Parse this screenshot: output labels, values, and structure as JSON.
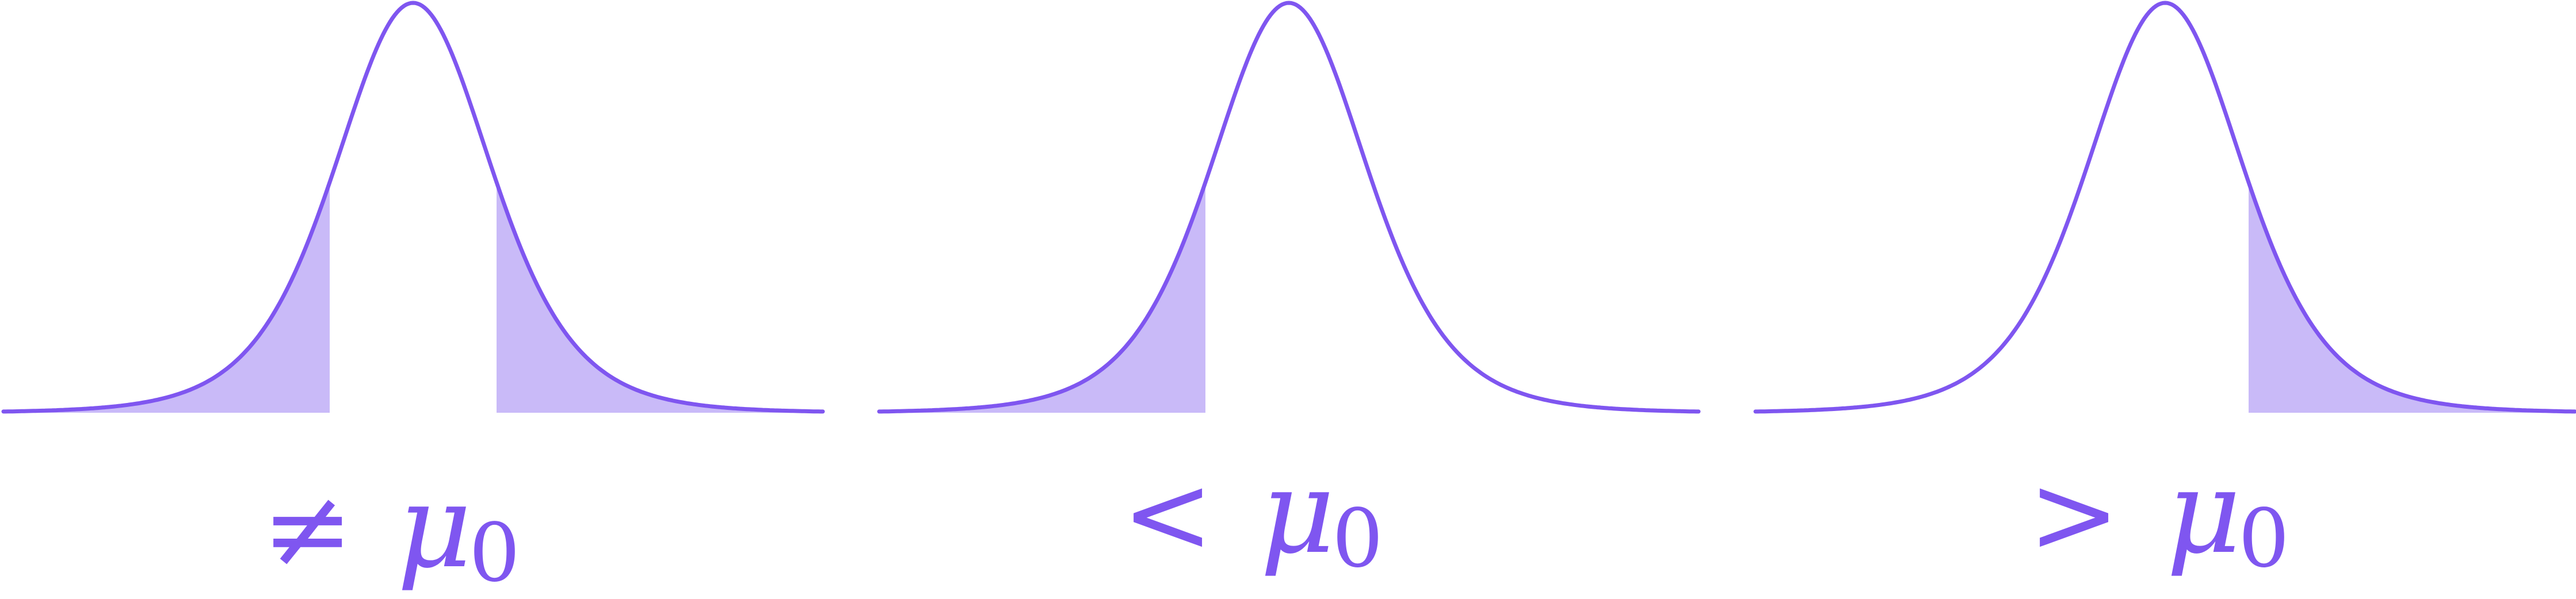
{
  "colors": {
    "curve": "#7f56f0",
    "shade": "#c9baf8",
    "background": "#ffffff"
  },
  "panels": [
    {
      "shaded_tails": "both",
      "label": {
        "operator": "≠",
        "symbol": "μ",
        "subscript": "0"
      }
    },
    {
      "shaded_tails": "left",
      "label": {
        "operator": "<",
        "symbol": "μ",
        "subscript": "0"
      }
    },
    {
      "shaded_tails": "right",
      "label": {
        "operator": ">",
        "symbol": "μ",
        "subscript": "0"
      }
    }
  ]
}
